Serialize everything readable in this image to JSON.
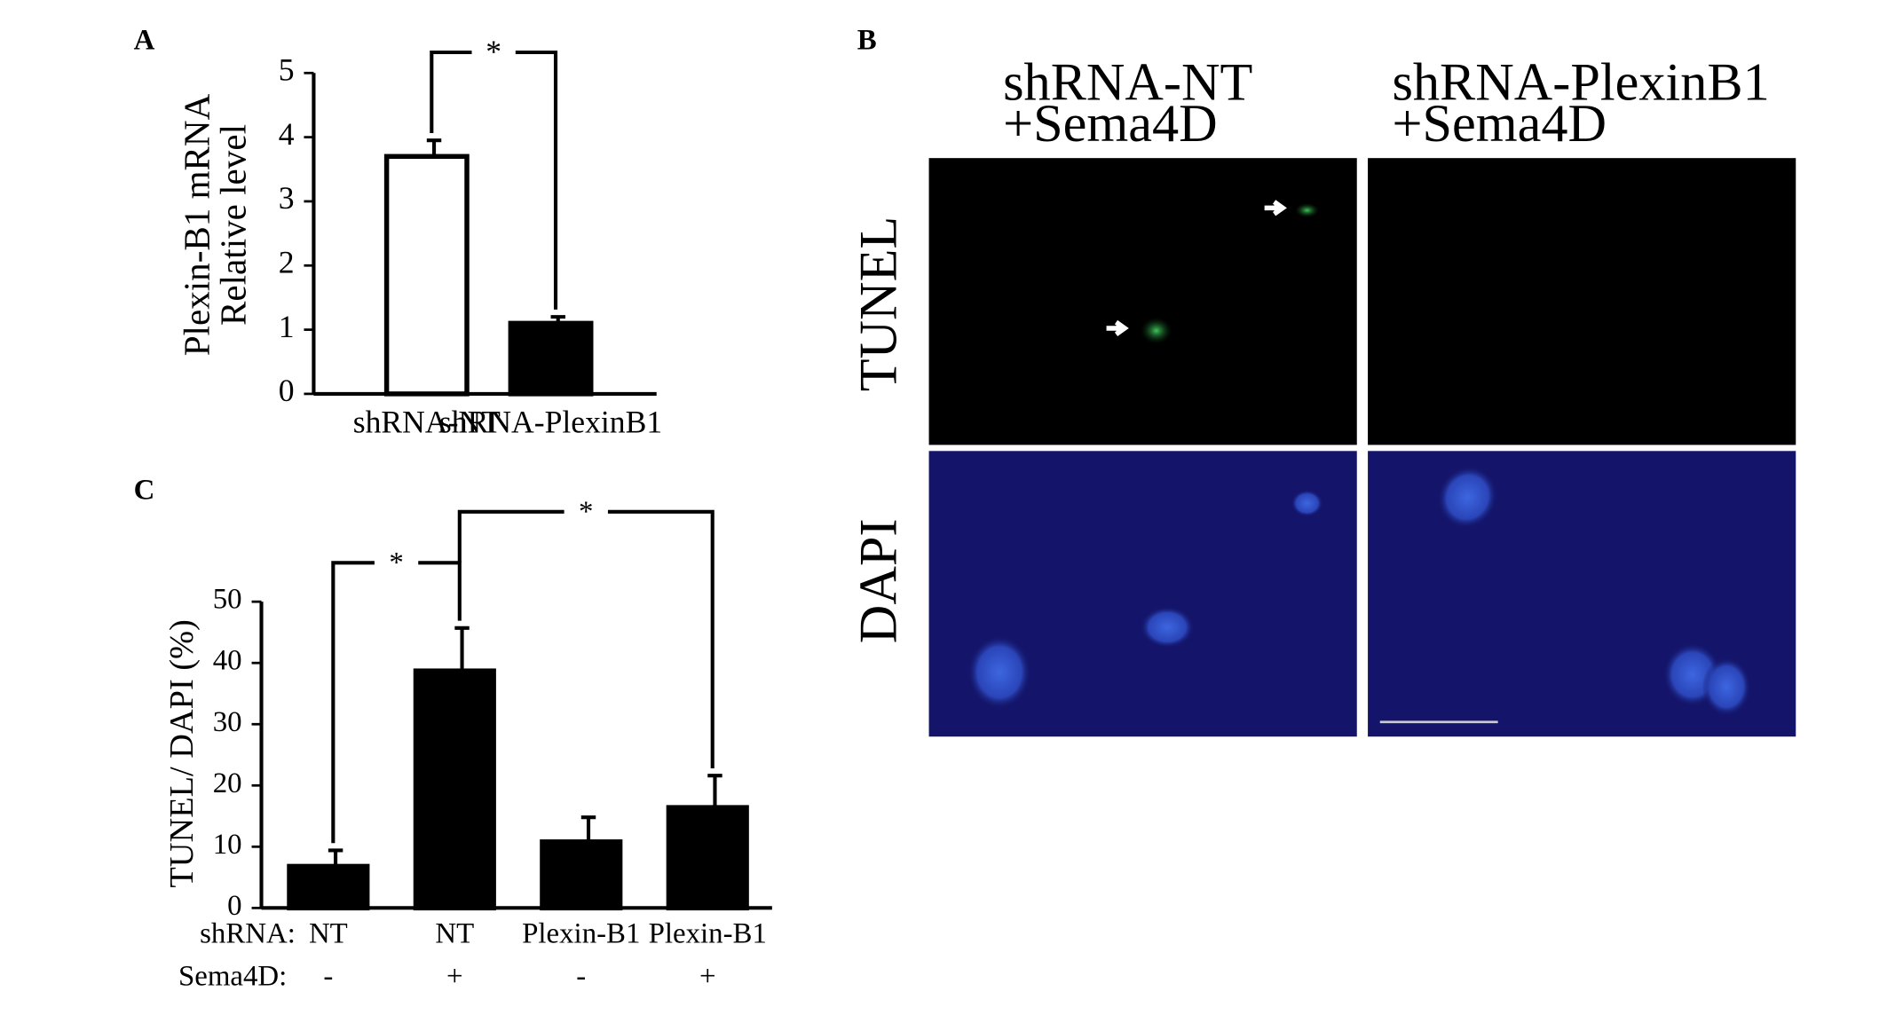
{
  "chart_data": [
    {
      "type": "bar",
      "panel": "A",
      "ylabel": [
        "Plexin-B1 mRNA",
        "Relative level"
      ],
      "categories": [
        "shRNA-NT",
        "shRNA-PlexinB1"
      ],
      "values": [
        3.7,
        1.1
      ],
      "errors": [
        0.25,
        0.1
      ],
      "colors": [
        "#ffffff",
        "#000000"
      ],
      "ylim": [
        0,
        5
      ],
      "yticks": [
        0,
        1,
        2,
        3,
        4,
        5
      ],
      "significance": [
        {
          "label": "*",
          "between": [
            0,
            1
          ]
        }
      ]
    },
    {
      "type": "bar",
      "panel": "C",
      "ylabel": [
        "TUNEL/ DAPI (%)"
      ],
      "categories_label": "shRNA:",
      "categories": [
        "NT",
        "NT",
        "Plexin-B1",
        "Plexin-B1"
      ],
      "categories2_label": "Sema4D:",
      "categories2": [
        "-",
        "+",
        "-",
        "+"
      ],
      "values": [
        6.8,
        38.7,
        10.8,
        16.4
      ],
      "errors": [
        2.6,
        7.0,
        4.0,
        5.2
      ],
      "colors": [
        "#000000",
        "#000000",
        "#000000",
        "#000000"
      ],
      "ylim": [
        0,
        50
      ],
      "yticks": [
        0,
        10,
        20,
        30,
        40,
        50
      ],
      "significance": [
        {
          "label": "*",
          "between": [
            0,
            1
          ]
        },
        {
          "label": "*",
          "between": [
            1,
            3
          ]
        }
      ]
    }
  ],
  "panel_b": {
    "label": "B",
    "columns": [
      [
        "shRNA-NT",
        "+Sema4D"
      ],
      [
        "shRNA-PlexinB1",
        "+Sema4D"
      ]
    ],
    "rows": [
      "TUNEL",
      "DAPI"
    ]
  }
}
